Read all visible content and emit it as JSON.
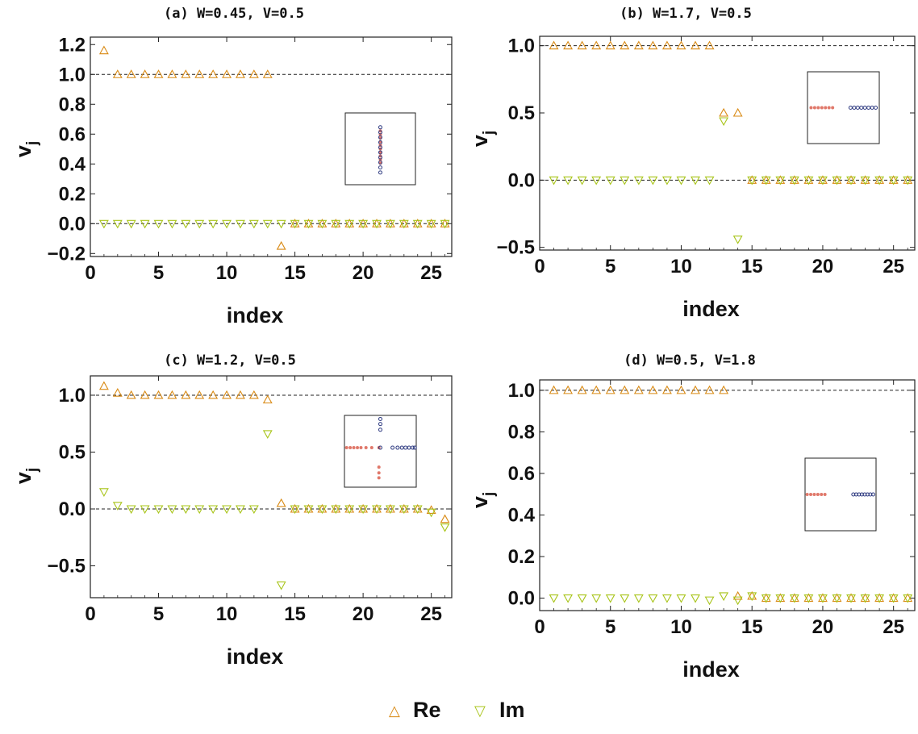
{
  "legend": {
    "re_label": "Re",
    "im_label": "Im",
    "re_color": "#d98a14",
    "im_color": "#a8c419"
  },
  "chart_data": [
    {
      "type": "scatter",
      "title": "(a) W=0.45, V=0.5",
      "xlabel": "index",
      "ylabel": "v_j",
      "xlim": [
        0,
        26.5
      ],
      "ylim": [
        -0.22,
        1.25
      ],
      "xticks": [
        "0",
        "5",
        "10",
        "15",
        "20",
        "25"
      ],
      "yticks": [
        "−0.2",
        "0.0",
        "0.2",
        "0.4",
        "0.6",
        "0.8",
        "1.0",
        "1.2"
      ],
      "ytick_values": [
        -0.2,
        0.0,
        0.2,
        0.4,
        0.6,
        0.8,
        1.0,
        1.2
      ],
      "reference_lines": [
        0.0,
        1.0
      ],
      "series": [
        {
          "name": "Re",
          "x": [
            1,
            2,
            3,
            4,
            5,
            6,
            7,
            8,
            9,
            10,
            11,
            12,
            13,
            14,
            15,
            16,
            17,
            18,
            19,
            20,
            21,
            22,
            23,
            24,
            25,
            26
          ],
          "values": [
            1.16,
            1.0,
            1.0,
            1.0,
            1.0,
            1.0,
            1.0,
            1.0,
            1.0,
            1.0,
            1.0,
            1.0,
            1.0,
            -0.15,
            0.0,
            0.0,
            0.0,
            0.0,
            0.0,
            0.0,
            0.0,
            0.0,
            0.0,
            0.0,
            0.0,
            0.0
          ]
        },
        {
          "name": "Im",
          "x": [
            1,
            2,
            3,
            4,
            5,
            6,
            7,
            8,
            9,
            10,
            11,
            12,
            13,
            14,
            15,
            16,
            17,
            18,
            19,
            20,
            21,
            22,
            23,
            24,
            25,
            26
          ],
          "values": [
            0,
            0,
            0,
            0,
            0,
            0,
            0,
            0,
            0,
            0,
            0,
            0,
            0,
            0,
            0,
            0,
            0,
            0,
            0,
            0,
            0,
            0,
            0,
            0,
            0,
            0
          ]
        }
      ],
      "inset": {
        "red_dots": [
          [
            0.5,
            0.25
          ],
          [
            0.5,
            0.3
          ],
          [
            0.5,
            0.35
          ],
          [
            0.5,
            0.4
          ],
          [
            0.5,
            0.45
          ],
          [
            0.5,
            0.5
          ],
          [
            0.5,
            0.55
          ],
          [
            0.5,
            0.6
          ],
          [
            0.5,
            0.65
          ],
          [
            0.5,
            0.7
          ]
        ],
        "blue_circles": [
          [
            0.5,
            0.2
          ],
          [
            0.5,
            0.27
          ],
          [
            0.5,
            0.34
          ],
          [
            0.5,
            0.41
          ],
          [
            0.5,
            0.48
          ],
          [
            0.5,
            0.55
          ],
          [
            0.5,
            0.62
          ],
          [
            0.5,
            0.69
          ],
          [
            0.5,
            0.76
          ],
          [
            0.5,
            0.83
          ]
        ]
      }
    },
    {
      "type": "scatter",
      "title": "(b) W=1.7, V=0.5",
      "xlabel": "index",
      "ylabel": "v_j",
      "xlim": [
        0,
        26.5
      ],
      "ylim": [
        -0.52,
        1.07
      ],
      "xticks": [
        "0",
        "5",
        "10",
        "15",
        "20",
        "25"
      ],
      "yticks": [
        "−0.5",
        "0.0",
        "0.5",
        "1.0"
      ],
      "ytick_values": [
        -0.5,
        0.0,
        0.5,
        1.0
      ],
      "reference_lines": [
        0.0,
        1.0
      ],
      "series": [
        {
          "name": "Re",
          "x": [
            1,
            2,
            3,
            4,
            5,
            6,
            7,
            8,
            9,
            10,
            11,
            12,
            13,
            14,
            15,
            16,
            17,
            18,
            19,
            20,
            21,
            22,
            23,
            24,
            25,
            26
          ],
          "values": [
            1.0,
            1.0,
            1.0,
            1.0,
            1.0,
            1.0,
            1.0,
            1.0,
            1.0,
            1.0,
            1.0,
            1.0,
            0.5,
            0.5,
            0.0,
            0.0,
            0.0,
            0.0,
            0.0,
            0.0,
            0.0,
            0.0,
            0.0,
            0.0,
            0.0,
            0.0
          ]
        },
        {
          "name": "Im",
          "x": [
            1,
            2,
            3,
            4,
            5,
            6,
            7,
            8,
            9,
            10,
            11,
            12,
            13,
            14,
            15,
            16,
            17,
            18,
            19,
            20,
            21,
            22,
            23,
            24,
            25,
            26
          ],
          "values": [
            0,
            0,
            0,
            0,
            0,
            0,
            0,
            0,
            0,
            0,
            0,
            0,
            0.44,
            -0.44,
            0,
            0,
            0,
            0,
            0,
            0,
            0,
            0,
            0,
            0,
            0,
            0
          ]
        }
      ],
      "inset": {
        "red_dots": [
          [
            0.05,
            0.5
          ],
          [
            0.1,
            0.5
          ],
          [
            0.15,
            0.5
          ],
          [
            0.2,
            0.5
          ],
          [
            0.25,
            0.5
          ],
          [
            0.3,
            0.5
          ],
          [
            0.35,
            0.5
          ]
        ],
        "blue_circles": [
          [
            0.6,
            0.5
          ],
          [
            0.65,
            0.5
          ],
          [
            0.7,
            0.5
          ],
          [
            0.75,
            0.5
          ],
          [
            0.8,
            0.5
          ],
          [
            0.85,
            0.5
          ],
          [
            0.9,
            0.5
          ],
          [
            0.95,
            0.5
          ]
        ]
      }
    },
    {
      "type": "scatter",
      "title": "(c) W=1.2, V=0.5",
      "xlabel": "index",
      "ylabel": "v_j",
      "xlim": [
        0,
        26.5
      ],
      "ylim": [
        -0.78,
        1.17
      ],
      "xticks": [
        "0",
        "5",
        "10",
        "15",
        "20",
        "25"
      ],
      "yticks": [
        "−0.5",
        "0.0",
        "0.5",
        "1.0"
      ],
      "ytick_values": [
        -0.5,
        0.0,
        0.5,
        1.0
      ],
      "reference_lines": [
        0.0,
        1.0
      ],
      "series": [
        {
          "name": "Re",
          "x": [
            1,
            2,
            3,
            4,
            5,
            6,
            7,
            8,
            9,
            10,
            11,
            12,
            13,
            14,
            15,
            16,
            17,
            18,
            19,
            20,
            21,
            22,
            23,
            24,
            25,
            26
          ],
          "values": [
            1.08,
            1.02,
            1.0,
            1.0,
            1.0,
            1.0,
            1.0,
            1.0,
            1.0,
            1.0,
            1.0,
            1.0,
            0.96,
            0.05,
            0.0,
            0.0,
            0.0,
            0.0,
            0.0,
            0.0,
            0.0,
            0.0,
            0.0,
            0.0,
            -0.01,
            -0.09
          ]
        },
        {
          "name": "Im",
          "x": [
            1,
            2,
            3,
            4,
            5,
            6,
            7,
            8,
            9,
            10,
            11,
            12,
            13,
            14,
            15,
            16,
            17,
            18,
            19,
            20,
            21,
            22,
            23,
            24,
            25,
            26
          ],
          "values": [
            0.15,
            0.03,
            0,
            0,
            0,
            0,
            0,
            0,
            0,
            0,
            0,
            0,
            0.66,
            -0.67,
            0,
            0,
            0,
            0,
            0,
            0,
            0,
            0,
            0,
            0,
            -0.03,
            -0.16
          ]
        }
      ],
      "inset": {
        "red_dots": [
          [
            0.03,
            0.45
          ],
          [
            0.08,
            0.45
          ],
          [
            0.13,
            0.45
          ],
          [
            0.18,
            0.45
          ],
          [
            0.23,
            0.45
          ],
          [
            0.3,
            0.45
          ],
          [
            0.38,
            0.45
          ],
          [
            0.48,
            0.45
          ],
          [
            0.48,
            0.72
          ],
          [
            0.48,
            0.8
          ],
          [
            0.48,
            0.87
          ]
        ],
        "blue_circles": [
          [
            0.5,
            0.05
          ],
          [
            0.5,
            0.12
          ],
          [
            0.5,
            0.2
          ],
          [
            0.5,
            0.45
          ],
          [
            0.67,
            0.45
          ],
          [
            0.74,
            0.45
          ],
          [
            0.8,
            0.45
          ],
          [
            0.85,
            0.45
          ],
          [
            0.9,
            0.45
          ],
          [
            0.95,
            0.45
          ],
          [
            0.98,
            0.45
          ]
        ]
      }
    },
    {
      "type": "scatter",
      "title": "(d) W=0.5, V=1.8",
      "xlabel": "index",
      "ylabel": "v_j",
      "xlim": [
        0,
        26.5
      ],
      "ylim": [
        -0.06,
        1.05
      ],
      "xticks": [
        "0",
        "5",
        "10",
        "15",
        "20",
        "25"
      ],
      "yticks": [
        "0.0",
        "0.2",
        "0.4",
        "0.6",
        "0.8",
        "1.0"
      ],
      "ytick_values": [
        0.0,
        0.2,
        0.4,
        0.6,
        0.8,
        1.0
      ],
      "reference_lines": [
        1.0
      ],
      "series": [
        {
          "name": "Re",
          "x": [
            1,
            2,
            3,
            4,
            5,
            6,
            7,
            8,
            9,
            10,
            11,
            12,
            13,
            14,
            15,
            16,
            17,
            18,
            19,
            20,
            21,
            22,
            23,
            24,
            25,
            26
          ],
          "values": [
            1.0,
            1.0,
            1.0,
            1.0,
            1.0,
            1.0,
            1.0,
            1.0,
            1.0,
            1.0,
            1.0,
            1.0,
            1.0,
            0.01,
            0.01,
            0.0,
            0.0,
            0.0,
            0.0,
            0.0,
            0.0,
            0.0,
            0.0,
            0.0,
            0.0,
            0.0
          ]
        },
        {
          "name": "Im",
          "x": [
            1,
            2,
            3,
            4,
            5,
            6,
            7,
            8,
            9,
            10,
            11,
            12,
            13,
            14,
            15,
            16,
            17,
            18,
            19,
            20,
            21,
            22,
            23,
            24,
            25,
            26
          ],
          "values": [
            0,
            0,
            0,
            0,
            0,
            0,
            0,
            0,
            0,
            0,
            0,
            -0.01,
            0.01,
            -0.01,
            0.01,
            0,
            0,
            0,
            0,
            0,
            0,
            0,
            0,
            0,
            0,
            0
          ]
        }
      ],
      "inset": {
        "red_dots": [
          [
            0.03,
            0.5
          ],
          [
            0.08,
            0.5
          ],
          [
            0.13,
            0.5
          ],
          [
            0.18,
            0.5
          ],
          [
            0.23,
            0.5
          ],
          [
            0.28,
            0.5
          ]
        ],
        "blue_circles": [
          [
            0.68,
            0.5
          ],
          [
            0.72,
            0.5
          ],
          [
            0.76,
            0.5
          ],
          [
            0.8,
            0.5
          ],
          [
            0.84,
            0.5
          ],
          [
            0.88,
            0.5
          ],
          [
            0.92,
            0.5
          ],
          [
            0.96,
            0.5
          ]
        ]
      }
    }
  ]
}
